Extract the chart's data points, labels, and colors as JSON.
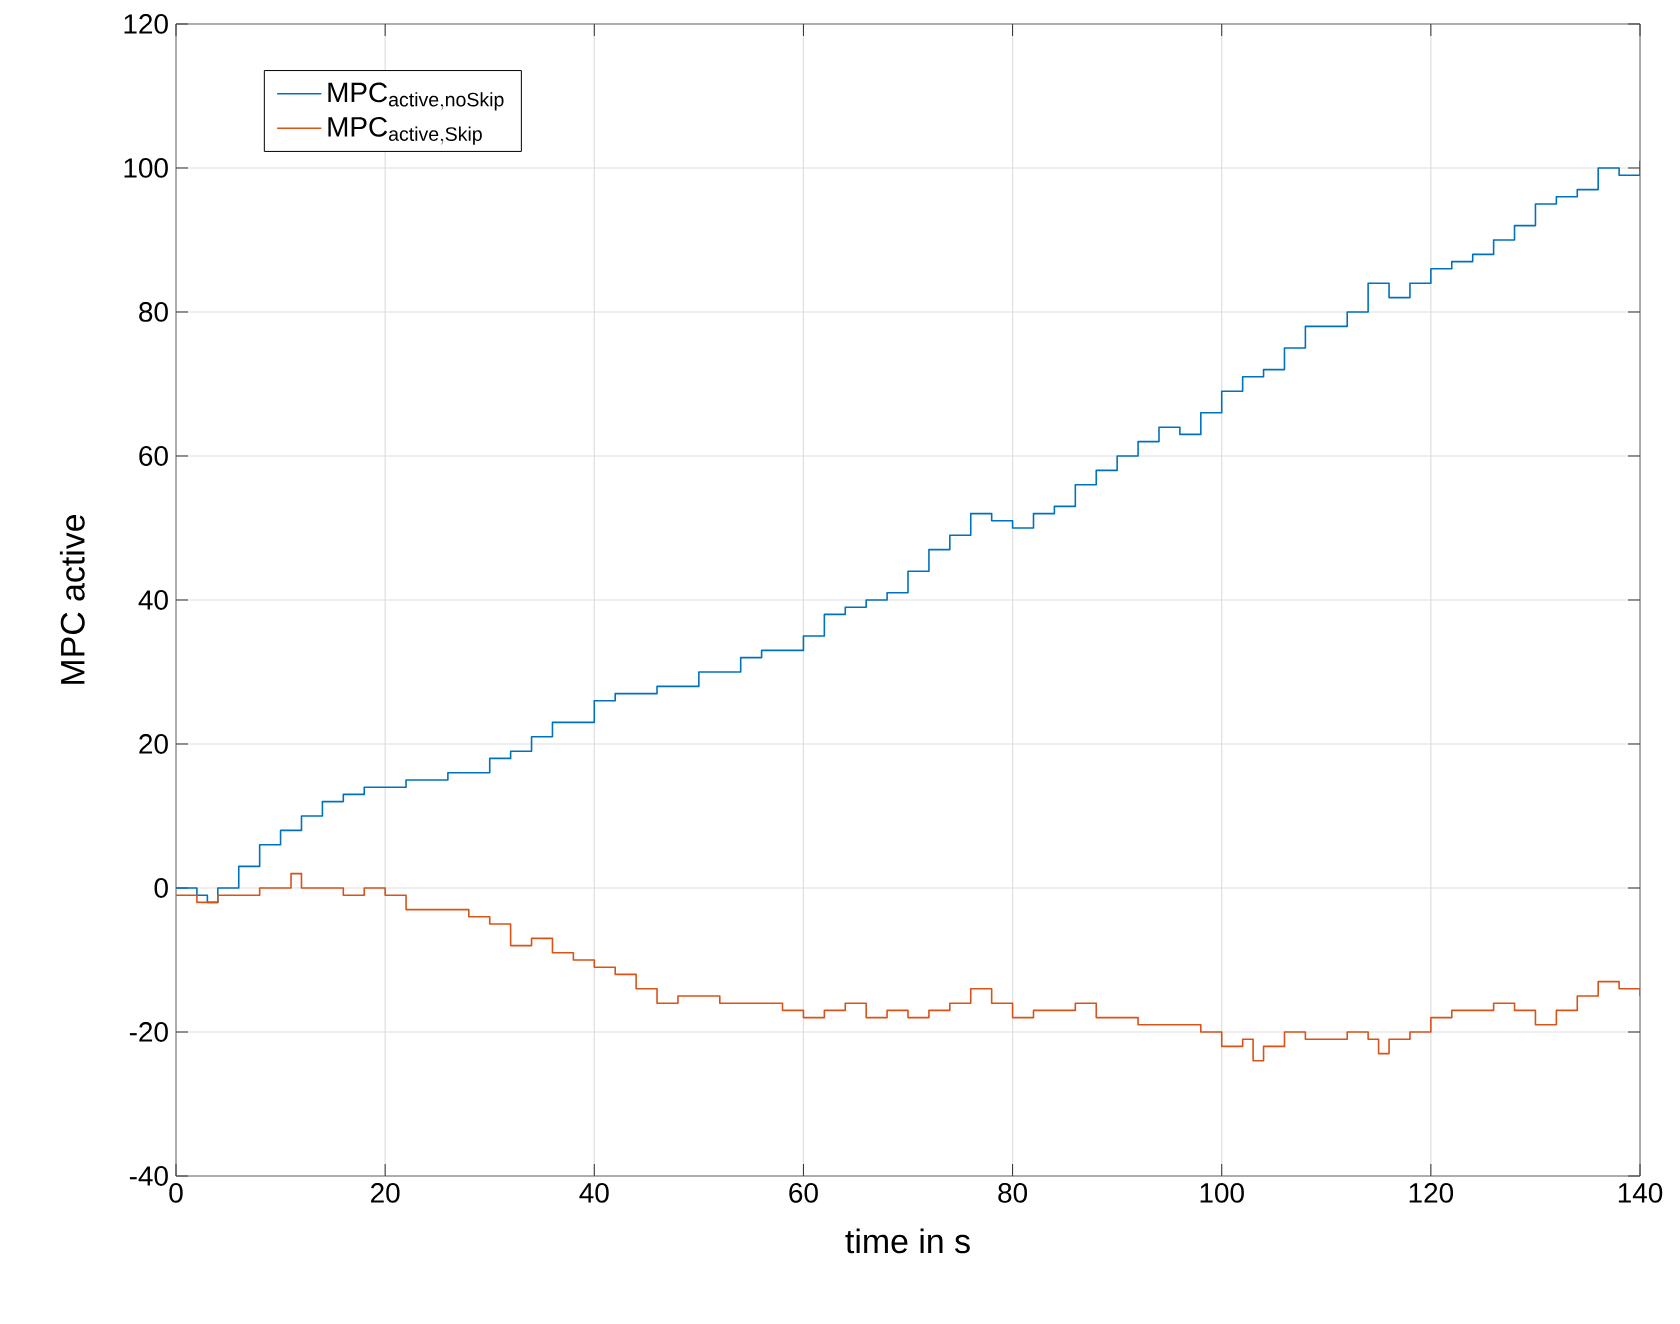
{
  "chart_data": {
    "type": "step",
    "xlabel": "time in s",
    "ylabel": "MPC active",
    "xlim": [
      0,
      140
    ],
    "ylim": [
      -40,
      120
    ],
    "xticks": [
      0,
      20,
      40,
      60,
      80,
      100,
      120,
      140
    ],
    "yticks": [
      -40,
      -20,
      0,
      20,
      40,
      60,
      80,
      100,
      120
    ],
    "grid": true,
    "legend": "top left",
    "series": [
      {
        "name": "\\mathrm{MPC}_{\\mathrm{active,noSkip}}",
        "color": "#0072bd",
        "x": [
          0,
          2,
          3,
          4,
          6,
          8,
          10,
          12,
          14,
          16,
          18,
          20,
          22,
          24,
          26,
          28,
          30,
          32,
          34,
          36,
          38,
          40,
          42,
          44,
          46,
          48,
          50,
          52,
          54,
          56,
          58,
          60,
          62,
          64,
          66,
          68,
          70,
          72,
          74,
          76,
          78,
          80,
          82,
          84,
          86,
          88,
          90,
          92,
          94,
          96,
          98,
          100,
          102,
          104,
          106,
          108,
          110,
          112,
          114,
          116,
          118,
          120,
          122,
          124,
          126,
          128,
          130,
          132,
          134,
          136,
          138,
          140
        ],
        "values": [
          0,
          -1,
          -2,
          0,
          3,
          6,
          8,
          10,
          12,
          13,
          14,
          14,
          15,
          15,
          16,
          16,
          18,
          19,
          21,
          23,
          23,
          26,
          27,
          27,
          28,
          28,
          30,
          30,
          32,
          33,
          33,
          35,
          38,
          39,
          40,
          41,
          44,
          47,
          49,
          52,
          51,
          50,
          52,
          53,
          56,
          58,
          60,
          62,
          64,
          63,
          66,
          69,
          71,
          72,
          75,
          78,
          78,
          80,
          84,
          82,
          84,
          86,
          87,
          88,
          90,
          92,
          95,
          96,
          97,
          100,
          99,
          101
        ]
      },
      {
        "name": "\\mathrm{MPC}_{\\mathrm{active,Skip}}",
        "color": "#d95319",
        "x": [
          0,
          2,
          4,
          6,
          8,
          10,
          11,
          12,
          14,
          16,
          18,
          20,
          22,
          24,
          26,
          28,
          30,
          32,
          34,
          36,
          38,
          40,
          42,
          44,
          46,
          48,
          50,
          52,
          54,
          56,
          58,
          60,
          62,
          64,
          66,
          68,
          70,
          72,
          74,
          76,
          78,
          80,
          82,
          84,
          86,
          88,
          90,
          92,
          94,
          96,
          98,
          100,
          102,
          103,
          104,
          106,
          108,
          110,
          112,
          114,
          115,
          116,
          118,
          120,
          122,
          124,
          126,
          128,
          130,
          132,
          134,
          136,
          138,
          140
        ],
        "values": [
          -1,
          -2,
          -1,
          -1,
          0,
          0,
          2,
          0,
          0,
          -1,
          0,
          -1,
          -3,
          -3,
          -3,
          -4,
          -5,
          -8,
          -7,
          -9,
          -10,
          -11,
          -12,
          -14,
          -16,
          -15,
          -15,
          -16,
          -16,
          -16,
          -17,
          -18,
          -17,
          -16,
          -18,
          -17,
          -18,
          -17,
          -16,
          -14,
          -16,
          -18,
          -17,
          -17,
          -16,
          -18,
          -18,
          -19,
          -19,
          -19,
          -20,
          -22,
          -21,
          -24,
          -22,
          -20,
          -21,
          -21,
          -20,
          -21,
          -23,
          -21,
          -20,
          -18,
          -17,
          -17,
          -16,
          -17,
          -19,
          -17,
          -15,
          -13,
          -14,
          -15
        ]
      }
    ]
  }
}
